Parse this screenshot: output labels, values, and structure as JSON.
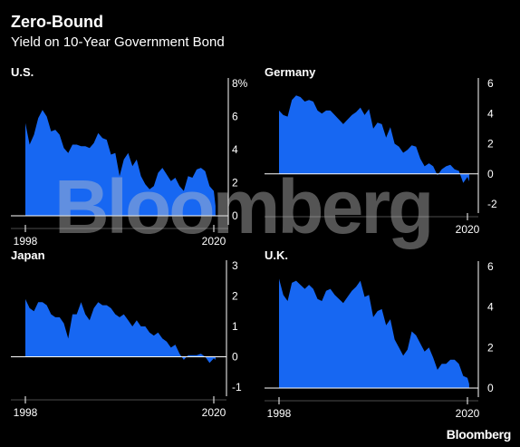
{
  "header": {
    "title": "Zero-Bound",
    "subtitle": "Yield on 10-Year Government Bond"
  },
  "watermark": "Bloomberg",
  "brand": "Bloomberg",
  "colors": {
    "area": "#1767f2",
    "background": "#000000",
    "axis": "#ffffff"
  },
  "chart_data": [
    {
      "type": "area",
      "title": "U.S.",
      "ylim": [
        0,
        8
      ],
      "yticks": [
        0,
        2,
        4,
        6,
        8
      ],
      "ytick_labels": [
        "0",
        "2",
        "4",
        "6",
        "8%"
      ],
      "xlim": [
        1998,
        2020
      ],
      "xticks": [
        1998,
        2020
      ],
      "grid": false,
      "series": [
        {
          "x": [
            1998,
            1998.5,
            1999,
            1999.5,
            2000,
            2000.5,
            2001,
            2001.5,
            2002,
            2002.5,
            2003,
            2003.5,
            2004,
            2004.5,
            2005,
            2005.5,
            2006,
            2006.5,
            2007,
            2007.5,
            2008,
            2008.5,
            2009,
            2009.5,
            2010,
            2010.5,
            2011,
            2011.5,
            2012,
            2012.5,
            2013,
            2013.5,
            2014,
            2014.5,
            2015,
            2015.5,
            2016,
            2016.5,
            2017,
            2017.5,
            2018,
            2018.5,
            2019,
            2019.5,
            2020,
            2020.2
          ],
          "y": [
            5.6,
            4.3,
            4.9,
            5.9,
            6.4,
            6.0,
            5.1,
            5.2,
            4.9,
            4.1,
            3.8,
            4.3,
            4.3,
            4.2,
            4.2,
            4.1,
            4.4,
            5.0,
            4.7,
            4.6,
            3.7,
            3.8,
            2.4,
            3.4,
            3.8,
            3.0,
            3.4,
            2.4,
            1.9,
            1.6,
            1.8,
            2.6,
            2.9,
            2.5,
            2.1,
            2.3,
            1.8,
            1.5,
            2.4,
            2.3,
            2.8,
            2.9,
            2.7,
            1.8,
            1.5,
            0.6
          ]
        }
      ]
    },
    {
      "type": "area",
      "title": "Germany",
      "ylim": [
        -2,
        6
      ],
      "yticks": [
        -2,
        0,
        2,
        4,
        6
      ],
      "ytick_labels": [
        "-2",
        "0",
        "2",
        "4",
        "6"
      ],
      "xlim": [
        1998,
        2020
      ],
      "xticks": [
        2020
      ],
      "grid": false,
      "series": [
        {
          "x": [
            1998,
            1998.5,
            1999,
            1999.5,
            2000,
            2000.5,
            2001,
            2001.5,
            2002,
            2002.5,
            2003,
            2003.5,
            2004,
            2004.5,
            2005,
            2005.5,
            2006,
            2006.5,
            2007,
            2007.5,
            2008,
            2008.5,
            2009,
            2009.5,
            2010,
            2010.5,
            2011,
            2011.5,
            2012,
            2012.5,
            2013,
            2013.5,
            2014,
            2014.5,
            2015,
            2015.5,
            2016,
            2016.5,
            2017,
            2017.5,
            2018,
            2018.5,
            2019,
            2019.5,
            2020,
            2020.2
          ],
          "y": [
            4.2,
            3.9,
            3.8,
            4.9,
            5.2,
            5.1,
            4.8,
            4.9,
            4.8,
            4.2,
            4.0,
            4.2,
            4.2,
            3.9,
            3.6,
            3.3,
            3.6,
            3.9,
            4.1,
            4.4,
            3.9,
            4.3,
            3.0,
            3.4,
            3.3,
            2.4,
            3.1,
            2.0,
            1.8,
            1.4,
            1.6,
            1.9,
            1.8,
            1.0,
            0.5,
            0.7,
            0.5,
            -0.1,
            0.3,
            0.5,
            0.6,
            0.3,
            0.2,
            -0.6,
            -0.2,
            -0.5
          ]
        }
      ]
    },
    {
      "type": "area",
      "title": "Japan",
      "ylim": [
        -1,
        3
      ],
      "yticks": [
        -1,
        0,
        1,
        2,
        3
      ],
      "ytick_labels": [
        "-1",
        "0",
        "1",
        "2",
        "3"
      ],
      "xlim": [
        1998,
        2020
      ],
      "xticks": [
        1998,
        2020
      ],
      "grid": false,
      "series": [
        {
          "x": [
            1998,
            1998.5,
            1999,
            1999.5,
            2000,
            2000.5,
            2001,
            2001.5,
            2002,
            2002.5,
            2003,
            2003.5,
            2004,
            2004.5,
            2005,
            2005.5,
            2006,
            2006.5,
            2007,
            2007.5,
            2008,
            2008.5,
            2009,
            2009.5,
            2010,
            2010.5,
            2011,
            2011.5,
            2012,
            2012.5,
            2013,
            2013.5,
            2014,
            2014.5,
            2015,
            2015.5,
            2016,
            2016.5,
            2017,
            2017.5,
            2018,
            2018.5,
            2019,
            2019.5,
            2020,
            2020.2
          ],
          "y": [
            1.9,
            1.6,
            1.5,
            1.8,
            1.8,
            1.7,
            1.4,
            1.3,
            1.3,
            1.1,
            0.6,
            1.4,
            1.4,
            1.8,
            1.4,
            1.2,
            1.6,
            1.8,
            1.7,
            1.7,
            1.6,
            1.4,
            1.3,
            1.4,
            1.2,
            1.0,
            1.2,
            1.0,
            1.0,
            0.8,
            0.7,
            0.8,
            0.6,
            0.5,
            0.3,
            0.4,
            0.1,
            -0.1,
            0.05,
            0.05,
            0.05,
            0.1,
            0.0,
            -0.2,
            -0.05,
            -0.1
          ]
        }
      ]
    },
    {
      "type": "area",
      "title": "U.K.",
      "ylim": [
        0,
        6
      ],
      "yticks": [
        0,
        2,
        4,
        6
      ],
      "ytick_labels": [
        "0",
        "2",
        "4",
        "6"
      ],
      "xlim": [
        1998,
        2020
      ],
      "xticks": [
        1998,
        2020
      ],
      "grid": false,
      "series": [
        {
          "x": [
            1998,
            1998.5,
            1999,
            1999.5,
            2000,
            2000.5,
            2001,
            2001.5,
            2002,
            2002.5,
            2003,
            2003.5,
            2004,
            2004.5,
            2005,
            2005.5,
            2006,
            2006.5,
            2007,
            2007.5,
            2008,
            2008.5,
            2009,
            2009.5,
            2010,
            2010.5,
            2011,
            2011.5,
            2012,
            2012.5,
            2013,
            2013.5,
            2014,
            2014.5,
            2015,
            2015.5,
            2016,
            2016.5,
            2017,
            2017.5,
            2018,
            2018.5,
            2019,
            2019.5,
            2020,
            2020.2
          ],
          "y": [
            5.4,
            4.6,
            4.3,
            5.2,
            5.3,
            5.1,
            4.9,
            5.1,
            4.9,
            4.4,
            4.3,
            4.8,
            4.9,
            4.6,
            4.4,
            4.2,
            4.5,
            4.8,
            5.0,
            5.3,
            4.5,
            4.6,
            3.5,
            3.8,
            3.9,
            3.1,
            3.4,
            2.4,
            2.0,
            1.6,
            1.9,
            2.8,
            2.6,
            2.2,
            1.8,
            2.0,
            1.5,
            0.9,
            1.2,
            1.2,
            1.4,
            1.4,
            1.2,
            0.6,
            0.5,
            0.2
          ]
        }
      ]
    }
  ]
}
